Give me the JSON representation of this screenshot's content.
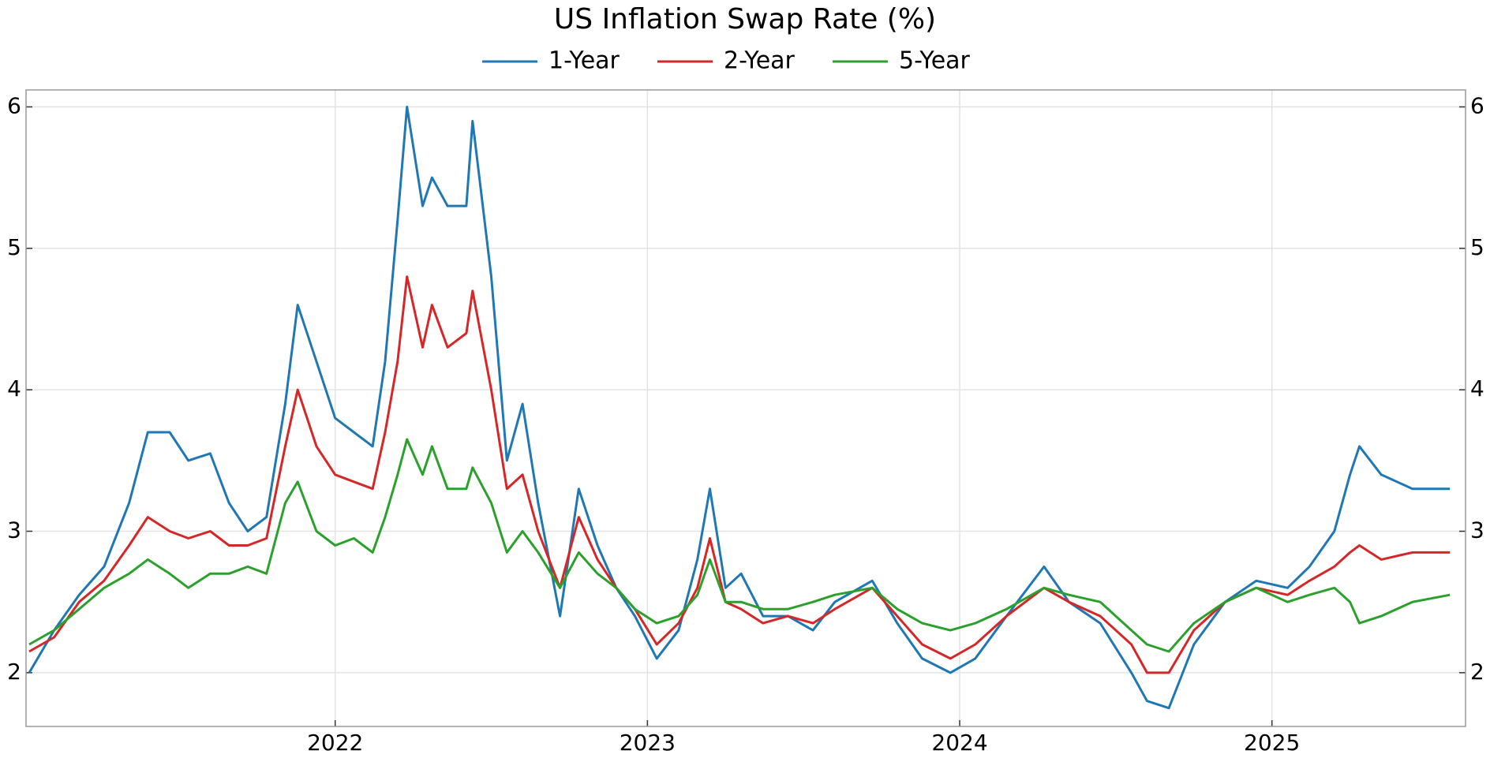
{
  "chart_data": {
    "type": "line",
    "title": "US Inflation Swap Rate (%)",
    "x": [
      2021.02,
      2021.1,
      2021.18,
      2021.26,
      2021.34,
      2021.4,
      2021.47,
      2021.53,
      2021.6,
      2021.66,
      2021.72,
      2021.78,
      2021.84,
      2021.88,
      2021.94,
      2022.0,
      2022.06,
      2022.12,
      2022.16,
      2022.2,
      2022.23,
      2022.28,
      2022.31,
      2022.36,
      2022.42,
      2022.44,
      2022.5,
      2022.55,
      2022.6,
      2022.65,
      2022.72,
      2022.78,
      2022.84,
      2022.9,
      2022.96,
      2023.03,
      2023.1,
      2023.16,
      2023.2,
      2023.25,
      2023.3,
      2023.37,
      2023.45,
      2023.53,
      2023.6,
      2023.72,
      2023.8,
      2023.88,
      2023.97,
      2024.05,
      2024.15,
      2024.27,
      2024.35,
      2024.45,
      2024.55,
      2024.6,
      2024.67,
      2024.75,
      2024.85,
      2024.95,
      2025.05,
      2025.12,
      2025.2,
      2025.25,
      2025.28,
      2025.35,
      2025.45,
      2025.57
    ],
    "series": [
      {
        "name": "1-Year",
        "color": "#1f77b4",
        "values": [
          2.0,
          2.3,
          2.55,
          2.75,
          3.2,
          3.7,
          3.7,
          3.5,
          3.55,
          3.2,
          3.0,
          3.1,
          3.9,
          4.6,
          4.2,
          3.8,
          3.7,
          3.6,
          4.2,
          5.2,
          6.0,
          5.3,
          5.5,
          5.3,
          5.3,
          5.9,
          4.8,
          3.5,
          3.9,
          3.2,
          2.4,
          3.3,
          2.9,
          2.6,
          2.4,
          2.1,
          2.3,
          2.8,
          3.3,
          2.6,
          2.7,
          2.4,
          2.4,
          2.3,
          2.5,
          2.65,
          2.35,
          2.1,
          2.0,
          2.1,
          2.4,
          2.75,
          2.5,
          2.35,
          2.0,
          1.8,
          1.75,
          2.2,
          2.5,
          2.65,
          2.6,
          2.75,
          3.0,
          3.4,
          3.6,
          3.4,
          3.3,
          3.3
        ]
      },
      {
        "name": "2-Year",
        "color": "#d62728",
        "values": [
          2.15,
          2.25,
          2.5,
          2.65,
          2.9,
          3.1,
          3.0,
          2.95,
          3.0,
          2.9,
          2.9,
          2.95,
          3.6,
          4.0,
          3.6,
          3.4,
          3.35,
          3.3,
          3.7,
          4.2,
          4.8,
          4.3,
          4.6,
          4.3,
          4.4,
          4.7,
          4.0,
          3.3,
          3.4,
          3.0,
          2.6,
          3.1,
          2.8,
          2.6,
          2.45,
          2.2,
          2.35,
          2.6,
          2.95,
          2.5,
          2.45,
          2.35,
          2.4,
          2.35,
          2.45,
          2.6,
          2.4,
          2.2,
          2.1,
          2.2,
          2.4,
          2.6,
          2.5,
          2.4,
          2.2,
          2.0,
          2.0,
          2.3,
          2.5,
          2.6,
          2.55,
          2.65,
          2.75,
          2.85,
          2.9,
          2.8,
          2.85,
          2.85
        ]
      },
      {
        "name": "5-Year",
        "color": "#2ca02c",
        "values": [
          2.2,
          2.3,
          2.45,
          2.6,
          2.7,
          2.8,
          2.7,
          2.6,
          2.7,
          2.7,
          2.75,
          2.7,
          3.2,
          3.35,
          3.0,
          2.9,
          2.95,
          2.85,
          3.1,
          3.4,
          3.65,
          3.4,
          3.6,
          3.3,
          3.3,
          3.45,
          3.2,
          2.85,
          3.0,
          2.85,
          2.6,
          2.85,
          2.7,
          2.6,
          2.45,
          2.35,
          2.4,
          2.55,
          2.8,
          2.5,
          2.5,
          2.45,
          2.45,
          2.5,
          2.55,
          2.6,
          2.45,
          2.35,
          2.3,
          2.35,
          2.45,
          2.6,
          2.55,
          2.5,
          2.3,
          2.2,
          2.15,
          2.35,
          2.5,
          2.6,
          2.5,
          2.55,
          2.6,
          2.5,
          2.35,
          2.4,
          2.5,
          2.55
        ]
      }
    ],
    "xlim": [
      2021.01,
      2025.62
    ],
    "xticks": [
      2022,
      2023,
      2024,
      2025
    ],
    "ylim": [
      1.62,
      6.12
    ],
    "yticks": [
      2,
      3,
      4,
      5,
      6
    ],
    "grid": true,
    "legend": "top"
  }
}
